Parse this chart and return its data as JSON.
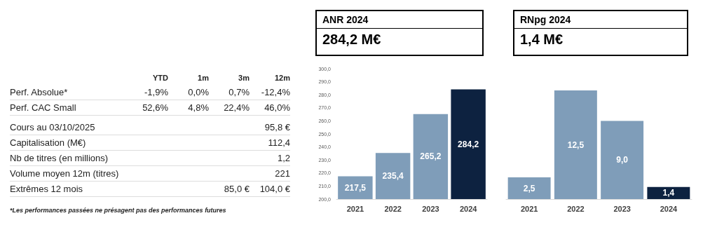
{
  "chart_data": [
    {
      "type": "other",
      "annotations": [
        "YTD",
        "1m",
        "3m",
        "12m",
        "Perf. Absolue*",
        "-1,9%",
        "0,0%",
        "0,7%",
        "-12,4%",
        "Perf. CAC Small",
        "52,6%",
        "4,8%",
        "22,4%",
        "46,0%",
        "Cours au 03/10/2025",
        "95,8 €",
        "Capitalisation (M€)",
        "112,4",
        "Nb de titres (en millions)",
        "1,2",
        "Volume moyen 12m (titres)",
        "221",
        "Extrêmes 12 mois",
        "85,0 €",
        "104,0 €",
        "*Les performances passées ne présagent pas des performances futures"
      ]
    },
    {
      "type": "bar",
      "title": "ANR 2024",
      "subtitle": "284,2 M€",
      "categories": [
        "2021",
        "2022",
        "2023",
        "2024"
      ],
      "values": [
        217.5,
        235.4,
        265.2,
        284.2
      ],
      "colors": [
        "#7f9db9",
        "#7f9db9",
        "#7f9db9",
        "#0d2240"
      ],
      "value_labels": [
        "217,5",
        "235,4",
        "265,2",
        "284,2"
      ],
      "ylim": [
        200,
        300
      ],
      "yticks": [
        {
          "value": 200,
          "label": "200,0"
        },
        {
          "value": 210,
          "label": "210,0"
        },
        {
          "value": 220,
          "label": "220,0"
        },
        {
          "value": 230,
          "label": "230,0"
        },
        {
          "value": 240,
          "label": "240,0"
        },
        {
          "value": 250,
          "label": "250,0"
        },
        {
          "value": 260,
          "label": "260,0"
        },
        {
          "value": 270,
          "label": "270,0"
        },
        {
          "value": 280,
          "label": "280,0"
        },
        {
          "value": 290,
          "label": "290,0"
        },
        {
          "value": 300,
          "label": "300,0"
        }
      ],
      "grid": false
    },
    {
      "type": "bar",
      "title": "RNpg 2024",
      "subtitle": "1,4 M€",
      "categories": [
        "2021",
        "2022",
        "2023",
        "2024"
      ],
      "values": [
        2.5,
        12.5,
        9.0,
        1.4
      ],
      "colors": [
        "#7f9db9",
        "#7f9db9",
        "#7f9db9",
        "#0d2240"
      ],
      "value_labels": [
        "2,5",
        "12,5",
        "9,0",
        "1,4"
      ],
      "tick_labels": "x",
      "grid": false
    }
  ]
}
